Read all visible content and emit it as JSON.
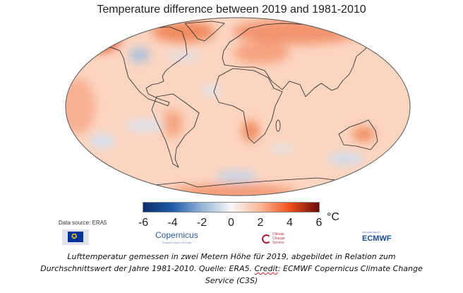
{
  "title": "Temperature difference between 2019 and 1981-2010",
  "colorbar": {
    "ticks": [
      "-6",
      "-4",
      "-2",
      "0",
      "2",
      "4",
      "6"
    ],
    "unit": "°C",
    "range": [
      -6,
      6
    ],
    "colors": [
      "#0b2f6b",
      "#1f5ca8",
      "#93b4d8",
      "#f7f7f7",
      "#fbb796",
      "#f0501a",
      "#6b0a0a"
    ]
  },
  "data_source": "Data source: ERA5",
  "logos": {
    "eu": "European Commission",
    "copernicus": "Copernicus",
    "copernicus_tagline": "Europe's eyes on Earth",
    "c3s": "Climate Change Service",
    "ecmwf": "ECMWF",
    "ecmwf_tagline": "IMPLEMENTED BY"
  },
  "caption": {
    "line1": "Lufttemperatur gemessen in zwei Metern Höhe für 2019, abgebildet in Relation zum",
    "line2_a": "Durchschnittswert der Jahre 1981-2010. Quelle: ERA5. ",
    "line2_credit": "Credit",
    "line2_b": ": ECMWF Copernicus Climate Change",
    "line3": "Service (C3S)"
  },
  "map": {
    "projection": "Robinson",
    "base_color": "#fcd5c0",
    "warm_color": "#f08a5e",
    "hot_color": "#e4522a",
    "cool_color": "#bccde6"
  }
}
